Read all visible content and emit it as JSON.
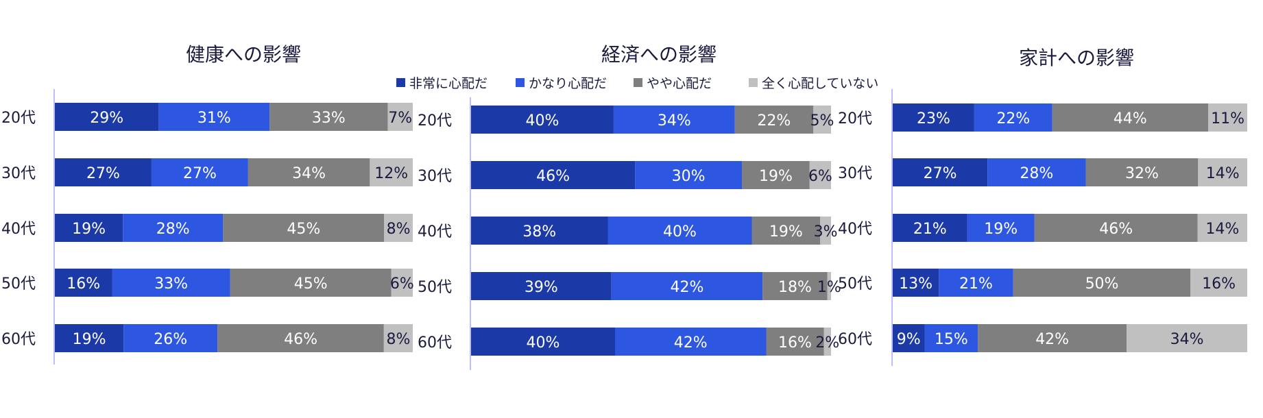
{
  "legend": [
    {
      "label": "非常に心配だ",
      "color": "#1b3aa8"
    },
    {
      "label": "かなり心配だ",
      "color": "#2d57e0"
    },
    {
      "label": "やや心配だ",
      "color": "#7f7f7f"
    },
    {
      "label": "全く心配していない",
      "color": "#c0c0c0"
    }
  ],
  "chart_data": [
    {
      "type": "bar",
      "orientation": "horizontal-stacked-100",
      "title": "健康への影響",
      "categories": [
        "20代",
        "30代",
        "40代",
        "50代",
        "60代"
      ],
      "series": [
        {
          "name": "非常に心配だ",
          "values": [
            29,
            27,
            19,
            16,
            19
          ]
        },
        {
          "name": "かなり心配だ",
          "values": [
            31,
            27,
            28,
            33,
            26
          ]
        },
        {
          "name": "やや心配だ",
          "values": [
            33,
            34,
            45,
            45,
            46
          ]
        },
        {
          "name": "全く心配していない",
          "values": [
            7,
            12,
            8,
            6,
            8
          ]
        }
      ]
    },
    {
      "type": "bar",
      "orientation": "horizontal-stacked-100",
      "title": "経済への影響",
      "categories": [
        "20代",
        "30代",
        "40代",
        "50代",
        "60代"
      ],
      "series": [
        {
          "name": "非常に心配だ",
          "values": [
            40,
            46,
            38,
            39,
            40
          ]
        },
        {
          "name": "かなり心配だ",
          "values": [
            34,
            30,
            40,
            42,
            42
          ]
        },
        {
          "name": "やや心配だ",
          "values": [
            22,
            19,
            19,
            18,
            16
          ]
        },
        {
          "name": "全く心配していない",
          "values": [
            5,
            6,
            3,
            1,
            2
          ]
        }
      ]
    },
    {
      "type": "bar",
      "orientation": "horizontal-stacked-100",
      "title": "家計への影響",
      "categories": [
        "20代",
        "30代",
        "40代",
        "50代",
        "60代"
      ],
      "series": [
        {
          "name": "非常に心配だ",
          "values": [
            23,
            27,
            21,
            13,
            9
          ]
        },
        {
          "name": "かなり心配だ",
          "values": [
            22,
            28,
            19,
            21,
            15
          ]
        },
        {
          "name": "やや心配だ",
          "values": [
            44,
            32,
            46,
            50,
            42
          ]
        },
        {
          "name": "全く心配していない",
          "values": [
            11,
            14,
            14,
            16,
            34
          ]
        }
      ]
    }
  ]
}
